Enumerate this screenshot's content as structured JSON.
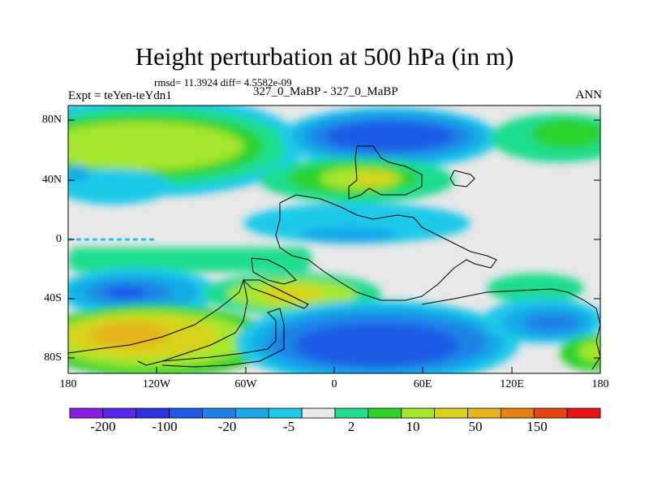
{
  "title": "Height perturbation at 500 hPa (in m)",
  "stats": "rmsd= 11.3924 diff= 4.5582e-09",
  "experiment": "Expt = teYen-teYdn1",
  "comparison": "327_0_MaBP - 327_0_MaBP",
  "season": "ANN",
  "axes": {
    "y_ticks": [
      "80N",
      "40N",
      "0",
      "40S",
      "80S"
    ],
    "x_ticks": [
      "180",
      "120W",
      "60W",
      "0",
      "60E",
      "120E",
      "180"
    ]
  },
  "colorbar": {
    "colors": [
      "#8a1ee0",
      "#5a28e6",
      "#2d32dc",
      "#1e5ae6",
      "#1e82e6",
      "#19a9e8",
      "#1ec8e8",
      "#e8e8e8",
      "#1edc8c",
      "#2dd22d",
      "#a5e62d",
      "#d7d21e",
      "#e6b41e",
      "#e68214",
      "#e64614",
      "#e61414"
    ],
    "labels": [
      "-200",
      "-100",
      "-20",
      "-5",
      "2",
      "10",
      "50",
      "150"
    ]
  },
  "colors": {
    "frame": "#000000",
    "background": "#e8e8e8"
  }
}
